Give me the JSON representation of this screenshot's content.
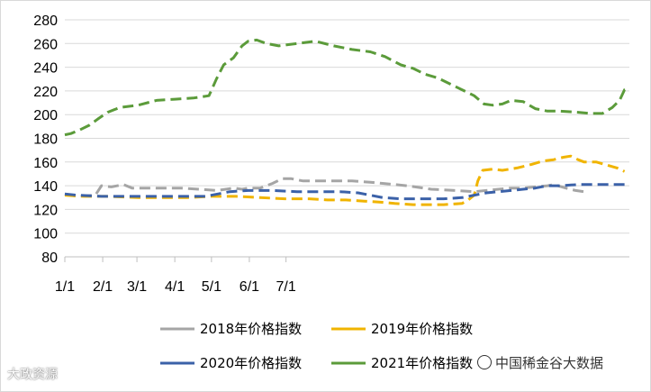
{
  "chart_data": {
    "type": "line",
    "title": "",
    "xlabel": "",
    "ylabel": "",
    "ylim": [
      80,
      280
    ],
    "y_ticks": [
      "80",
      "100",
      "120",
      "140",
      "160",
      "180",
      "200",
      "220",
      "240",
      "260",
      "280"
    ],
    "x_ticks": [
      "1/1",
      "2/1",
      "3/1",
      "4/1",
      "5/1",
      "6/1",
      "7/1"
    ],
    "grid": "horizontal",
    "legend_position": "bottom",
    "series": [
      {
        "name": "2018年价格指数",
        "color": "#a5a5a5",
        "dash": "dashed",
        "points": [
          [
            0,
            133
          ],
          [
            10,
            131
          ],
          [
            25,
            132
          ],
          [
            30,
            140
          ],
          [
            38,
            139
          ],
          [
            48,
            141
          ],
          [
            55,
            138
          ],
          [
            65,
            138
          ],
          [
            80,
            138
          ],
          [
            95,
            138
          ],
          [
            110,
            137
          ],
          [
            125,
            136
          ],
          [
            138,
            138
          ],
          [
            145,
            137
          ],
          [
            150,
            138
          ],
          [
            160,
            138
          ],
          [
            170,
            142
          ],
          [
            178,
            146
          ],
          [
            185,
            146
          ],
          [
            195,
            144
          ],
          [
            205,
            144
          ],
          [
            220,
            144
          ],
          [
            235,
            144
          ],
          [
            250,
            143
          ],
          [
            260,
            142
          ],
          [
            280,
            140
          ],
          [
            300,
            137
          ],
          [
            320,
            136
          ],
          [
            335,
            135
          ],
          [
            345,
            136
          ],
          [
            355,
            137
          ],
          [
            365,
            138
          ],
          [
            375,
            138
          ],
          [
            385,
            139
          ],
          [
            395,
            140
          ],
          [
            400,
            141
          ],
          [
            410,
            138
          ],
          [
            418,
            136
          ],
          [
            425,
            135
          ]
        ]
      },
      {
        "name": "2019年价格指数",
        "color": "#f0b400",
        "dash": "dashed",
        "points": [
          [
            0,
            132
          ],
          [
            15,
            131
          ],
          [
            35,
            131
          ],
          [
            60,
            130
          ],
          [
            80,
            130
          ],
          [
            100,
            130
          ],
          [
            120,
            131
          ],
          [
            140,
            131
          ],
          [
            160,
            130
          ],
          [
            180,
            129
          ],
          [
            200,
            129
          ],
          [
            215,
            128
          ],
          [
            230,
            128
          ],
          [
            245,
            127
          ],
          [
            260,
            126
          ],
          [
            270,
            125
          ],
          [
            285,
            124
          ],
          [
            300,
            124
          ],
          [
            310,
            124
          ],
          [
            325,
            125
          ],
          [
            330,
            128
          ],
          [
            335,
            132
          ],
          [
            338,
            144
          ],
          [
            342,
            153
          ],
          [
            350,
            154
          ],
          [
            358,
            153
          ],
          [
            370,
            155
          ],
          [
            382,
            158
          ],
          [
            392,
            161
          ],
          [
            400,
            162
          ],
          [
            408,
            164
          ],
          [
            414,
            165
          ],
          [
            420,
            162
          ],
          [
            425,
            160
          ],
          [
            435,
            160
          ],
          [
            445,
            157
          ],
          [
            452,
            155
          ],
          [
            458,
            152
          ]
        ]
      },
      {
        "name": "2020年价格指数",
        "color": "#3b61a8",
        "dash": "dashed",
        "points": [
          [
            0,
            133
          ],
          [
            10,
            132
          ],
          [
            30,
            131
          ],
          [
            60,
            131
          ],
          [
            80,
            131
          ],
          [
            100,
            131
          ],
          [
            115,
            131
          ],
          [
            125,
            133
          ],
          [
            135,
            135
          ],
          [
            150,
            136
          ],
          [
            170,
            136
          ],
          [
            190,
            135
          ],
          [
            210,
            135
          ],
          [
            225,
            135
          ],
          [
            240,
            134
          ],
          [
            250,
            132
          ],
          [
            260,
            130
          ],
          [
            275,
            129
          ],
          [
            290,
            129
          ],
          [
            310,
            129
          ],
          [
            325,
            130
          ],
          [
            335,
            132
          ],
          [
            345,
            134
          ],
          [
            355,
            135
          ],
          [
            365,
            136
          ],
          [
            375,
            137
          ],
          [
            385,
            138
          ],
          [
            395,
            140
          ],
          [
            405,
            140
          ],
          [
            420,
            141
          ],
          [
            440,
            141
          ],
          [
            458,
            141
          ]
        ]
      },
      {
        "name": "2021年价格指数",
        "color": "#5b9b3a",
        "dash": "dashed",
        "points": [
          [
            0,
            183
          ],
          [
            5,
            184
          ],
          [
            12,
            187
          ],
          [
            20,
            191
          ],
          [
            28,
            197
          ],
          [
            35,
            202
          ],
          [
            45,
            206
          ],
          [
            60,
            208
          ],
          [
            75,
            212
          ],
          [
            90,
            213
          ],
          [
            105,
            214
          ],
          [
            118,
            216
          ],
          [
            124,
            230
          ],
          [
            130,
            242
          ],
          [
            138,
            248
          ],
          [
            145,
            258
          ],
          [
            150,
            262
          ],
          [
            157,
            263
          ],
          [
            165,
            260
          ],
          [
            175,
            258
          ],
          [
            190,
            260
          ],
          [
            205,
            262
          ],
          [
            220,
            258
          ],
          [
            235,
            255
          ],
          [
            250,
            253
          ],
          [
            262,
            249
          ],
          [
            275,
            242
          ],
          [
            285,
            239
          ],
          [
            295,
            234
          ],
          [
            305,
            231
          ],
          [
            315,
            226
          ],
          [
            325,
            221
          ],
          [
            335,
            216
          ],
          [
            343,
            209
          ],
          [
            350,
            208
          ],
          [
            358,
            209
          ],
          [
            365,
            212
          ],
          [
            375,
            211
          ],
          [
            385,
            205
          ],
          [
            395,
            203
          ],
          [
            405,
            203
          ],
          [
            420,
            202
          ],
          [
            430,
            201
          ],
          [
            440,
            201
          ],
          [
            448,
            206
          ],
          [
            454,
            212
          ],
          [
            458,
            221
          ],
          [
            462,
            223
          ]
        ]
      }
    ]
  },
  "watermarks": {
    "left": "大政资源",
    "right": "中国稀金谷大数据"
  }
}
